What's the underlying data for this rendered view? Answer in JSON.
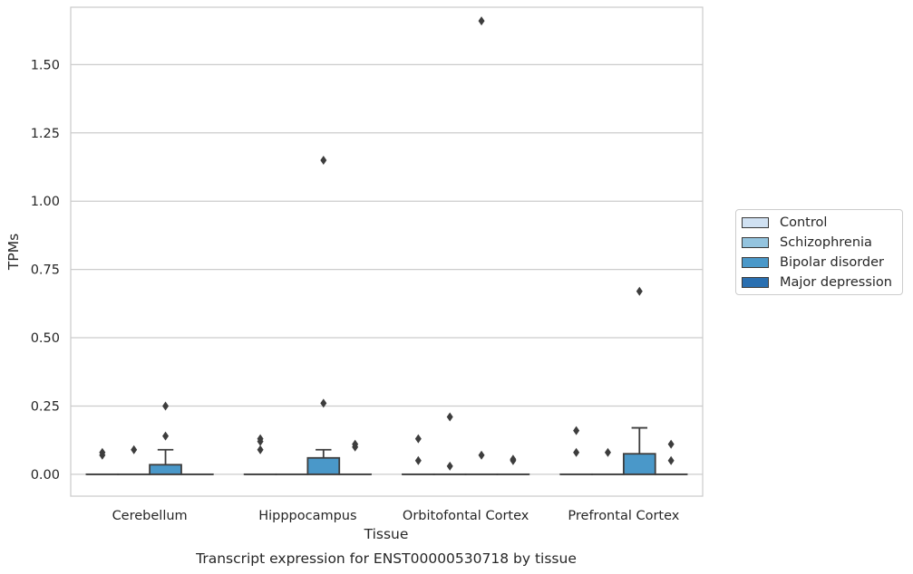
{
  "chart_data": {
    "type": "box",
    "title": "",
    "caption": "Transcript expression for ENST00000530718 by tissue",
    "xlabel": "Tissue",
    "ylabel": "TPMs",
    "ylim": [
      -0.08,
      1.71
    ],
    "yticks": [
      0.0,
      0.25,
      0.5,
      0.75,
      1.0,
      1.25,
      1.5
    ],
    "ytick_labels": [
      "0.00",
      "0.25",
      "0.50",
      "0.75",
      "1.00",
      "1.25",
      "1.50"
    ],
    "categories": [
      "Cerebellum",
      "Hipppocampus",
      "Orbitofontal Cortex",
      "Prefrontal Cortex"
    ],
    "grid": "horizontal",
    "legend_position": "right",
    "series": [
      {
        "name": "Control",
        "color": "#d0e1f2",
        "boxes": [
          {
            "q1": 0.0,
            "median": 0.0,
            "q3": 0.0,
            "whisker_low": 0.0,
            "whisker_high": 0.0,
            "outliers": [
              0.07,
              0.08
            ]
          },
          {
            "q1": 0.0,
            "median": 0.0,
            "q3": 0.0,
            "whisker_low": 0.0,
            "whisker_high": 0.0,
            "outliers": [
              0.09,
              0.12,
              0.13
            ]
          },
          {
            "q1": 0.0,
            "median": 0.0,
            "q3": 0.0,
            "whisker_low": 0.0,
            "whisker_high": 0.0,
            "outliers": [
              0.05,
              0.13
            ]
          },
          {
            "q1": 0.0,
            "median": 0.0,
            "q3": 0.0,
            "whisker_low": 0.0,
            "whisker_high": 0.0,
            "outliers": [
              0.08,
              0.16
            ]
          }
        ]
      },
      {
        "name": "Schizophrenia",
        "color": "#94c4df",
        "boxes": [
          {
            "q1": 0.0,
            "median": 0.0,
            "q3": 0.0,
            "whisker_low": 0.0,
            "whisker_high": 0.0,
            "outliers": [
              0.09
            ]
          },
          {
            "q1": 0.0,
            "median": 0.0,
            "q3": 0.0,
            "whisker_low": 0.0,
            "whisker_high": 0.0,
            "outliers": []
          },
          {
            "q1": 0.0,
            "median": 0.0,
            "q3": 0.0,
            "whisker_low": 0.0,
            "whisker_high": 0.0,
            "outliers": [
              0.03,
              0.21
            ]
          },
          {
            "q1": 0.0,
            "median": 0.0,
            "q3": 0.0,
            "whisker_low": 0.0,
            "whisker_high": 0.0,
            "outliers": [
              0.08
            ]
          }
        ]
      },
      {
        "name": "Bipolar disorder",
        "color": "#4a98c9",
        "boxes": [
          {
            "q1": 0.0,
            "median": 0.0,
            "q3": 0.035,
            "whisker_low": 0.0,
            "whisker_high": 0.09,
            "outliers": [
              0.14,
              0.25
            ]
          },
          {
            "q1": 0.0,
            "median": 0.0,
            "q3": 0.06,
            "whisker_low": 0.0,
            "whisker_high": 0.09,
            "outliers": [
              0.26,
              1.15
            ]
          },
          {
            "q1": 0.0,
            "median": 0.0,
            "q3": 0.0,
            "whisker_low": 0.0,
            "whisker_high": 0.0,
            "outliers": [
              0.07,
              1.66
            ]
          },
          {
            "q1": 0.0,
            "median": 0.0,
            "q3": 0.075,
            "whisker_low": 0.0,
            "whisker_high": 0.17,
            "outliers": [
              0.67
            ]
          }
        ]
      },
      {
        "name": "Major depression",
        "color": "#2a6fb0",
        "boxes": [
          {
            "q1": 0.0,
            "median": 0.0,
            "q3": 0.0,
            "whisker_low": 0.0,
            "whisker_high": 0.0,
            "outliers": []
          },
          {
            "q1": 0.0,
            "median": 0.0,
            "q3": 0.0,
            "whisker_low": 0.0,
            "whisker_high": 0.0,
            "outliers": [
              0.1,
              0.11
            ]
          },
          {
            "q1": 0.0,
            "median": 0.0,
            "q3": 0.0,
            "whisker_low": 0.0,
            "whisker_high": 0.0,
            "outliers": [
              0.05,
              0.055
            ]
          },
          {
            "q1": 0.0,
            "median": 0.0,
            "q3": 0.0,
            "whisker_low": 0.0,
            "whisker_high": 0.0,
            "outliers": [
              0.05,
              0.11
            ]
          }
        ]
      }
    ]
  }
}
